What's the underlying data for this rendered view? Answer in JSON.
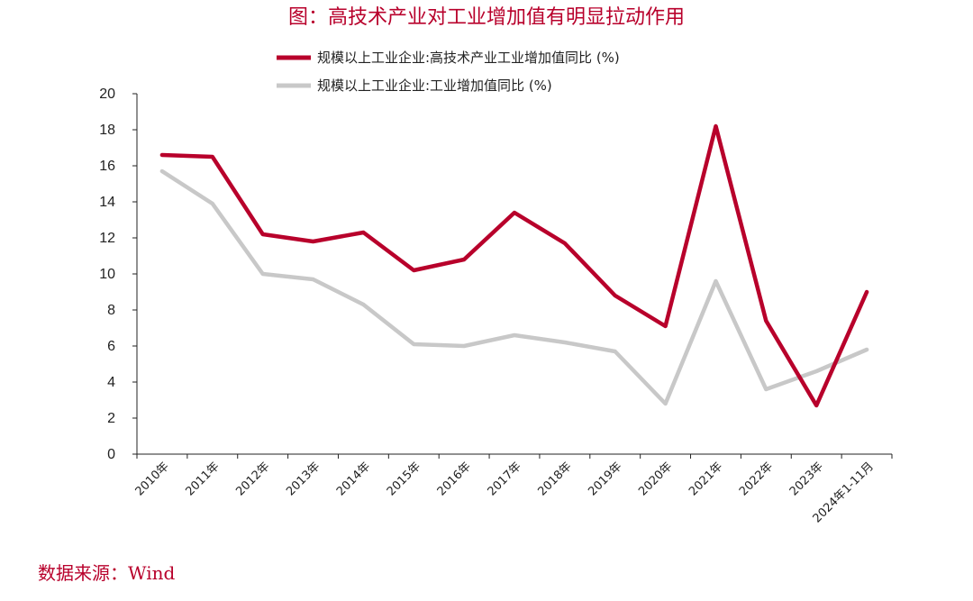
{
  "colors": {
    "title": "#b8002b",
    "series_primary": "#b8002b",
    "series_secondary": "#c8c8c8",
    "axis": "#222222",
    "source": "#b8002b"
  },
  "chart_data": {
    "type": "line",
    "title": "图：高技术产业对工业增加值有明显拉动作用",
    "xlabel": "",
    "ylabel": "",
    "ylim": [
      0,
      20
    ],
    "yticks": [
      0,
      2,
      4,
      6,
      8,
      10,
      12,
      14,
      16,
      18,
      20
    ],
    "grid": false,
    "legend_position": "top",
    "categories": [
      "2010年",
      "2011年",
      "2012年",
      "2013年",
      "2014年",
      "2015年",
      "2016年",
      "2017年",
      "2018年",
      "2019年",
      "2020年",
      "2021年",
      "2022年",
      "2023年",
      "2024年1-11月"
    ],
    "series": [
      {
        "name": "规模以上工业企业:高技术产业工业增加值同比 (%)",
        "values": [
          16.6,
          16.5,
          12.2,
          11.8,
          12.3,
          10.2,
          10.8,
          13.4,
          11.7,
          8.8,
          7.1,
          18.2,
          7.4,
          2.7,
          9.0
        ]
      },
      {
        "name": "规模以上工业企业:工业增加值同比 (%)",
        "values": [
          15.7,
          13.9,
          10.0,
          9.7,
          8.3,
          6.1,
          6.0,
          6.6,
          6.2,
          5.7,
          2.8,
          9.6,
          3.6,
          4.6,
          5.8
        ]
      }
    ]
  },
  "source": "数据来源：Wind"
}
